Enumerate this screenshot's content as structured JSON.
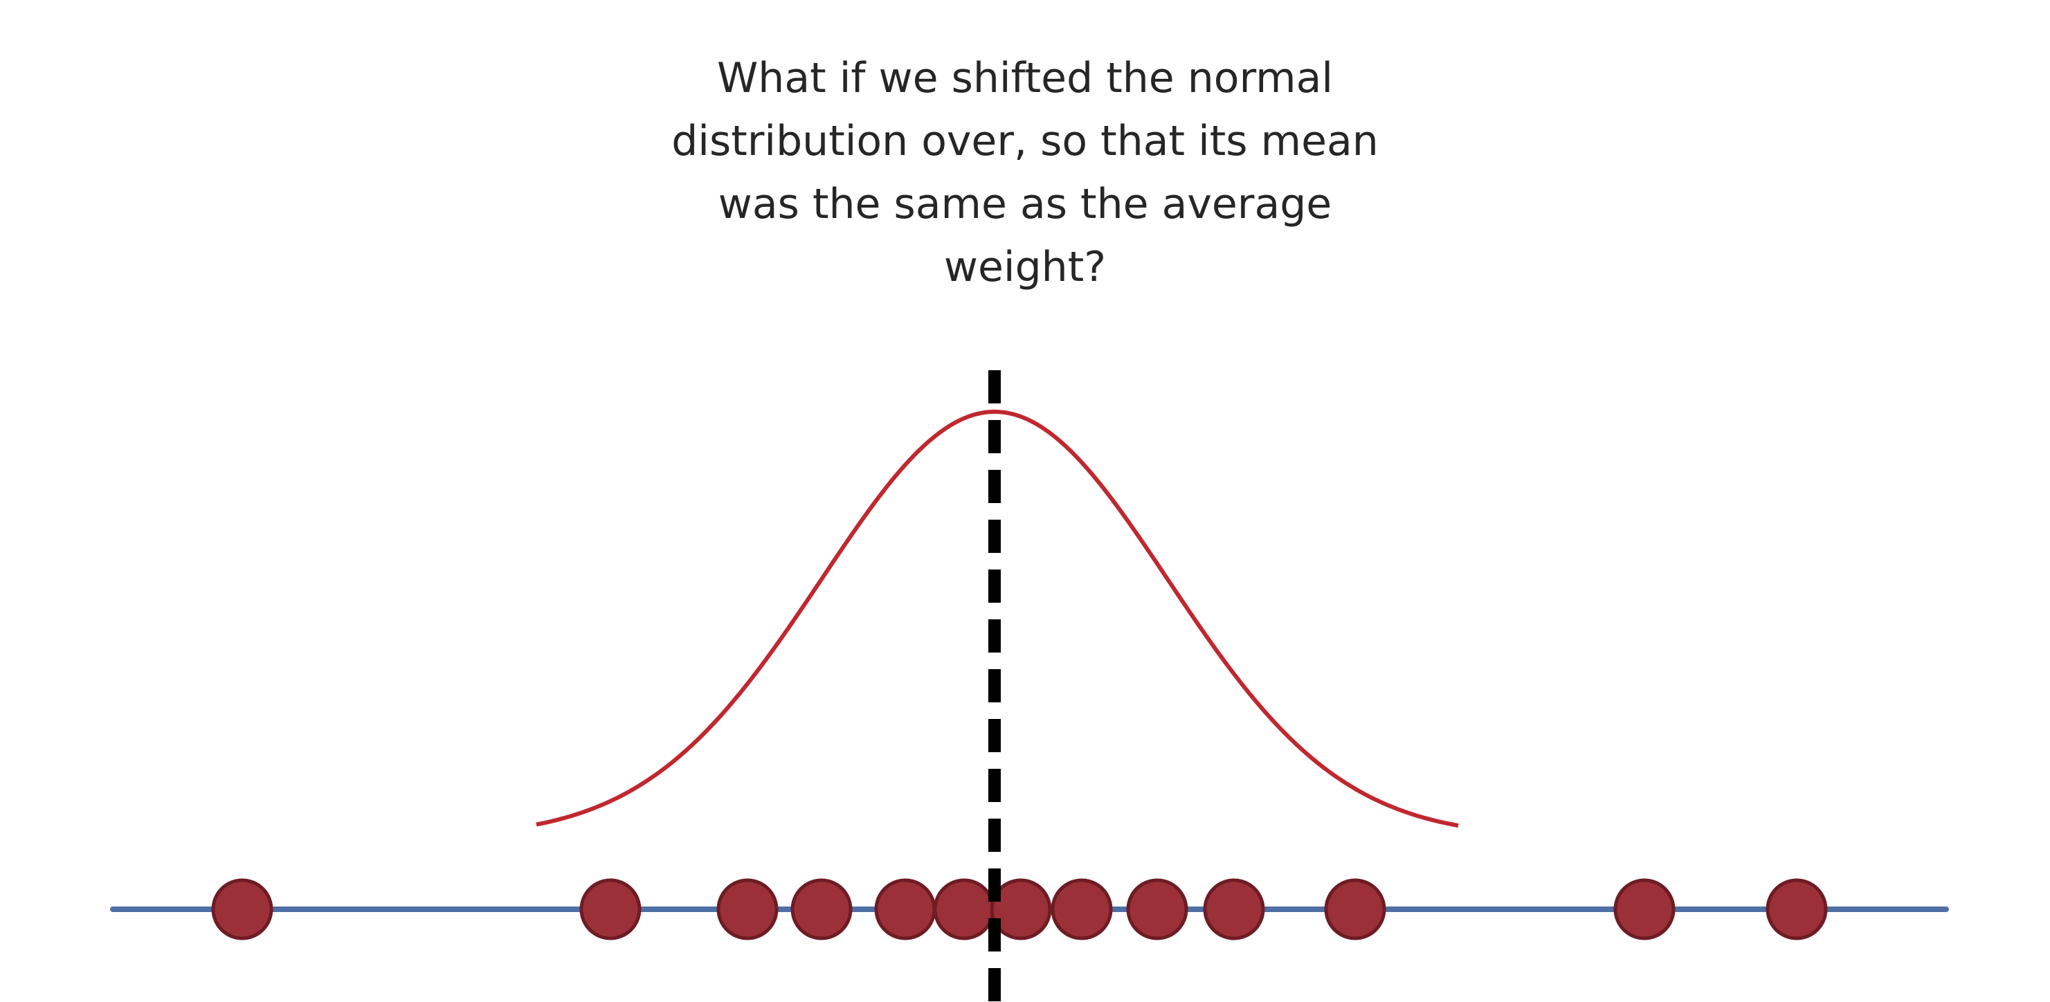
{
  "caption": {
    "lines": [
      "What if we shifted the normal",
      "distribution over, so that its mean",
      "was the same as the average",
      "weight?"
    ]
  },
  "figure": {
    "colors": {
      "axis": "#4f6fa6",
      "curve": "#c0282f",
      "point_fill": "#9b3038",
      "point_stroke": "#6e1c24",
      "mean_line": "#000000"
    },
    "points_count": 13,
    "mean_line_style": "dashed"
  }
}
